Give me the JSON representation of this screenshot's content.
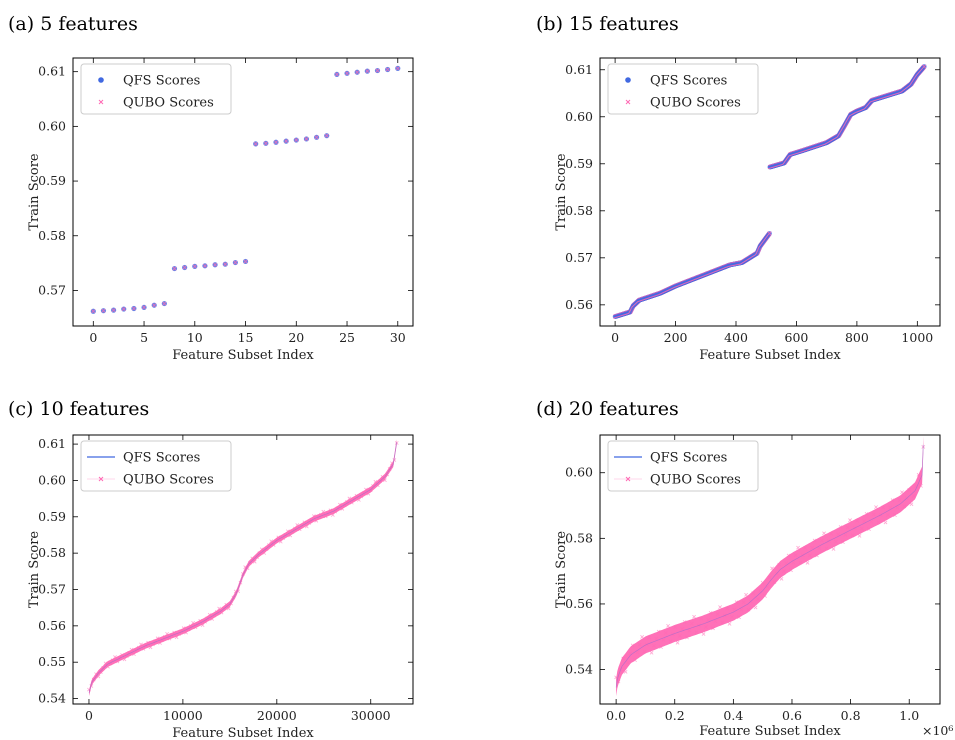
{
  "chart_data": [
    {
      "type": "scatter",
      "title": "(a) 5 features",
      "xlabel": "Feature Subset Index",
      "ylabel": "Train Score",
      "xlim": [
        -2,
        31.5
      ],
      "ylim": [
        0.5635,
        0.6125
      ],
      "xticks": [
        0,
        5,
        10,
        15,
        20,
        25,
        30
      ],
      "xtick_labels": [
        "0",
        "5",
        "10",
        "15",
        "20",
        "25",
        "30"
      ],
      "yticks": [
        0.57,
        0.58,
        0.59,
        0.6,
        0.61
      ],
      "ytick_labels": [
        "0.57",
        "0.58",
        "0.59",
        "0.60",
        "0.61"
      ],
      "legend": "top-left",
      "series": [
        {
          "name": "QFS Scores",
          "marker": "circle",
          "color": "#4169e1"
        },
        {
          "name": "QUBO Scores",
          "marker": "x",
          "color": "#ff69b4"
        }
      ],
      "x": [
        0,
        1,
        2,
        3,
        4,
        5,
        6,
        7,
        8,
        9,
        10,
        11,
        12,
        13,
        14,
        15,
        16,
        17,
        18,
        19,
        20,
        21,
        22,
        23,
        24,
        25,
        26,
        27,
        28,
        29,
        30
      ],
      "y": [
        0.5662,
        0.5663,
        0.5664,
        0.5666,
        0.5667,
        0.5669,
        0.5673,
        0.5676,
        0.574,
        0.5742,
        0.5744,
        0.5745,
        0.5747,
        0.5748,
        0.5751,
        0.5753,
        0.5968,
        0.5969,
        0.5971,
        0.5973,
        0.5975,
        0.5977,
        0.598,
        0.5983,
        0.6095,
        0.6097,
        0.6099,
        0.6101,
        0.6102,
        0.6104,
        0.6106
      ]
    },
    {
      "type": "scatter",
      "title": "(b) 15 features",
      "xlabel": "Feature Subset Index",
      "ylabel": "Train Score",
      "xlim": [
        -50,
        1075
      ],
      "ylim": [
        0.5555,
        0.6125
      ],
      "xticks": [
        0,
        200,
        400,
        600,
        800,
        1000
      ],
      "xtick_labels": [
        "0",
        "200",
        "400",
        "600",
        "800",
        "1000"
      ],
      "yticks": [
        0.56,
        0.57,
        0.58,
        0.59,
        0.6,
        0.61
      ],
      "ytick_labels": [
        "0.56",
        "0.57",
        "0.58",
        "0.59",
        "0.60",
        "0.61"
      ],
      "legend": "top-left",
      "series": [
        {
          "name": "QFS Scores",
          "marker": "circle",
          "color": "#4169e1"
        },
        {
          "name": "QUBO Scores",
          "marker": "x",
          "color": "#ff69b4"
        }
      ],
      "curve_x": [
        0,
        50,
        60,
        80,
        150,
        200,
        300,
        380,
        420,
        470,
        480,
        511,
        512,
        560,
        580,
        620,
        700,
        740,
        760,
        780,
        800,
        830,
        850,
        900,
        950,
        980,
        1000,
        1023
      ],
      "curve_y": [
        0.5575,
        0.5585,
        0.5598,
        0.561,
        0.5625,
        0.564,
        0.5665,
        0.5685,
        0.569,
        0.571,
        0.5725,
        0.5752,
        0.5893,
        0.5902,
        0.592,
        0.5928,
        0.5945,
        0.596,
        0.5982,
        0.6005,
        0.6012,
        0.602,
        0.6035,
        0.6045,
        0.6055,
        0.607,
        0.609,
        0.6107
      ]
    },
    {
      "type": "line",
      "title": "(c) 10 features",
      "xlabel": "Feature Subset Index",
      "ylabel": "Train Score",
      "xlim": [
        -1700,
        34500
      ],
      "ylim": [
        0.5385,
        0.6125
      ],
      "xticks": [
        0,
        10000,
        20000,
        30000
      ],
      "xtick_labels": [
        "0",
        "10000",
        "20000",
        "30000"
      ],
      "yticks": [
        0.54,
        0.55,
        0.56,
        0.57,
        0.58,
        0.59,
        0.6,
        0.61
      ],
      "ytick_labels": [
        "0.54",
        "0.55",
        "0.56",
        "0.57",
        "0.58",
        "0.59",
        "0.60",
        "0.61"
      ],
      "legend": "top-left",
      "series": [
        {
          "name": "QFS Scores",
          "marker": "line",
          "color": "#4169e1"
        },
        {
          "name": "QUBO Scores",
          "marker": "x",
          "color": "#ff69b4"
        }
      ],
      "band_width": 0.0016,
      "curve_x": [
        0,
        300,
        1000,
        2000,
        4000,
        6000,
        8000,
        10000,
        12000,
        14000,
        15000,
        15700,
        16400,
        17000,
        18000,
        20000,
        22000,
        24000,
        26000,
        28000,
        30000,
        31500,
        32400,
        32767
      ],
      "curve_y": [
        0.5415,
        0.5445,
        0.547,
        0.5495,
        0.552,
        0.5545,
        0.5565,
        0.5585,
        0.561,
        0.564,
        0.566,
        0.569,
        0.574,
        0.577,
        0.5795,
        0.5835,
        0.5865,
        0.5895,
        0.5915,
        0.5945,
        0.5975,
        0.601,
        0.6045,
        0.6105
      ]
    },
    {
      "type": "line",
      "title": "(d) 20 features",
      "xlabel": "Feature Subset Index",
      "ylabel": "Train Score",
      "xlim": [
        -0.055,
        1.105
      ],
      "ylim": [
        0.5295,
        0.6115
      ],
      "xticks": [
        0.0,
        0.2,
        0.4,
        0.6,
        0.8,
        1.0
      ],
      "xtick_labels": [
        "0.0",
        "0.2",
        "0.4",
        "0.6",
        "0.8",
        "1.0"
      ],
      "x_multiplier": "×10⁶",
      "yticks": [
        0.54,
        0.56,
        0.58,
        0.6
      ],
      "ytick_labels": [
        "0.54",
        "0.56",
        "0.58",
        "0.60"
      ],
      "legend": "top-left",
      "series": [
        {
          "name": "QFS Scores",
          "marker": "line",
          "color": "#4169e1"
        },
        {
          "name": "QUBO Scores",
          "marker": "x",
          "color": "#ff69b4"
        }
      ],
      "band_width": 0.0052,
      "curve_x": [
        0.0,
        0.005,
        0.02,
        0.05,
        0.1,
        0.2,
        0.3,
        0.4,
        0.45,
        0.5,
        0.53,
        0.56,
        0.6,
        0.7,
        0.8,
        0.9,
        0.97,
        1.02,
        1.045,
        1.048
      ],
      "curve_y": [
        0.5345,
        0.5375,
        0.541,
        0.5445,
        0.5475,
        0.551,
        0.554,
        0.5575,
        0.56,
        0.564,
        0.5675,
        0.5705,
        0.573,
        0.578,
        0.5825,
        0.587,
        0.5905,
        0.5945,
        0.5995,
        0.6085
      ]
    }
  ]
}
